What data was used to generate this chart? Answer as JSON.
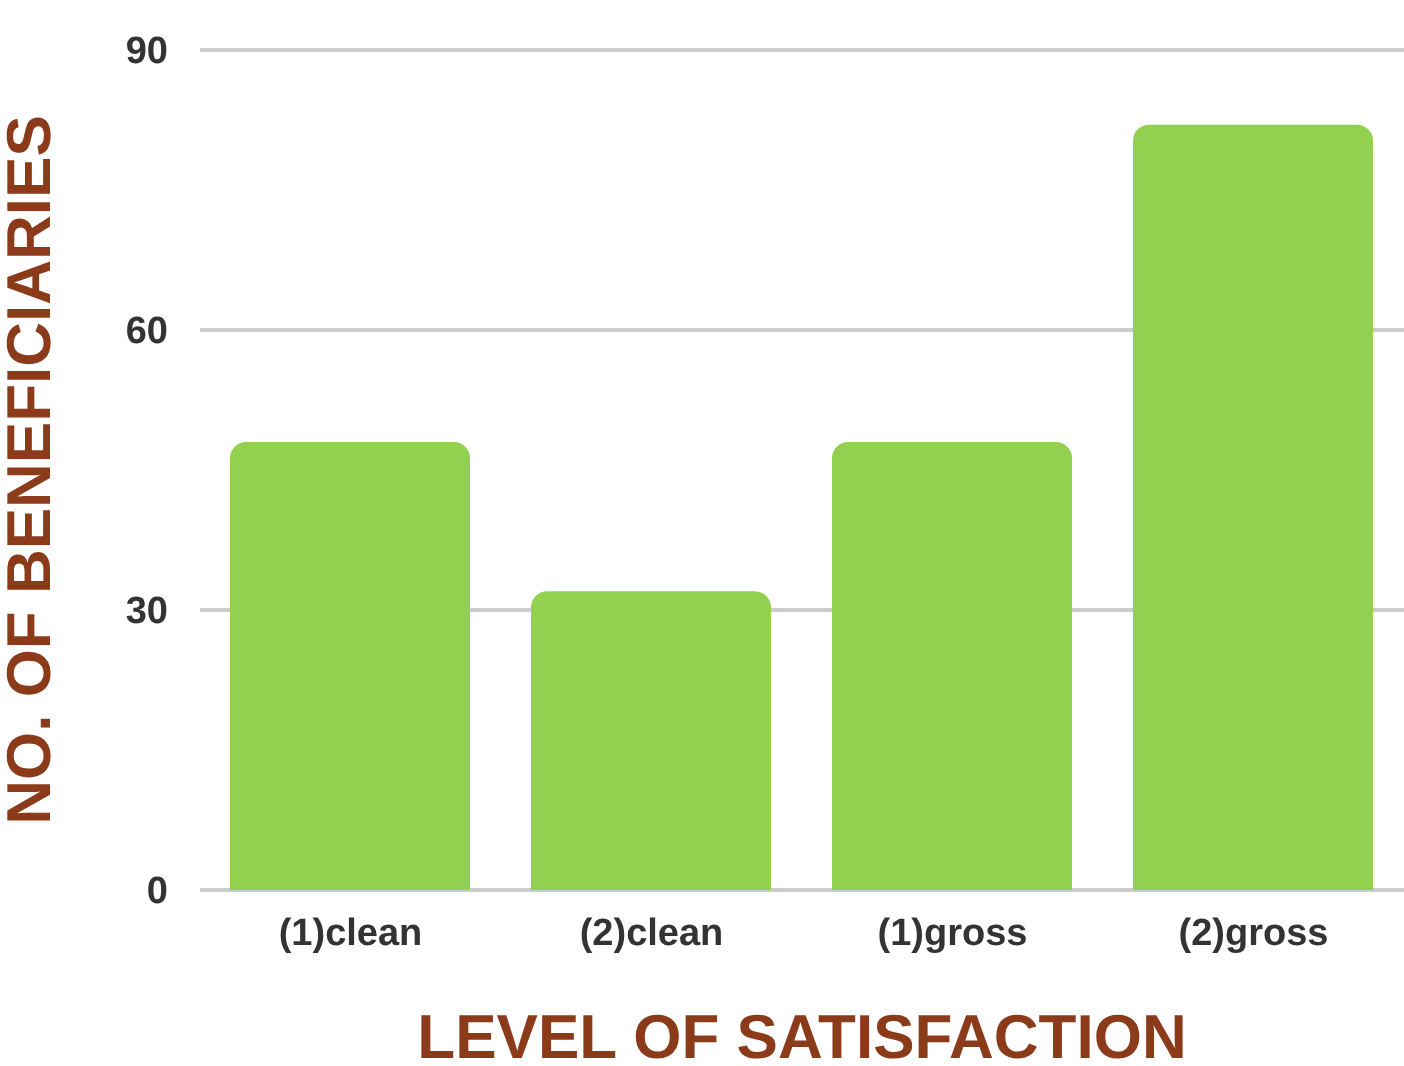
{
  "chart_data": {
    "type": "bar",
    "xlabel": "LEVEL OF SATISFACTION",
    "ylabel": "NO. OF BENEFICIARIES",
    "categories": [
      "(1)clean",
      "(2)clean",
      "(1)gross",
      "(2)gross"
    ],
    "values": [
      48,
      32,
      48,
      82
    ],
    "color": "#92d050",
    "ylim": [
      0,
      90
    ],
    "yticks": [
      0,
      30,
      60,
      90
    ],
    "grid": "y"
  }
}
